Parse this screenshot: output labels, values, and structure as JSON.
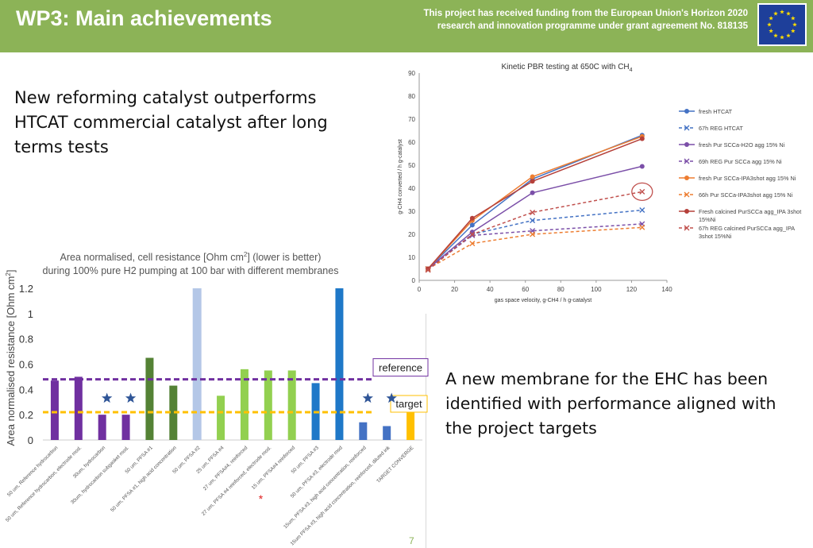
{
  "header": {
    "title": "WP3: Main achievements",
    "funding_line1": "This project has received funding from the European Union's Horizon 2020",
    "funding_line2": "research and innovation programme under grant agreement No. 818135",
    "accent_color": "#8cb357"
  },
  "claims": {
    "catalyst": "New reforming catalyst outperforms HTCAT commercial catalyst after long terms tests",
    "membrane": "A new membrane for the EHC has been identified with performance aligned with the project targets"
  },
  "page_number": "7",
  "chart_data": [
    {
      "type": "line",
      "title": "Kinetic PBR testing at 650C with CH",
      "title_subscript": "4",
      "xlabel": "gas space velocity, g-CH4 / h g-catalyst",
      "ylabel": "g-CH4 converted / h g-catalyst",
      "xlim": [
        0,
        140
      ],
      "ylim": [
        0,
        90
      ],
      "xticks": [
        "0",
        "20",
        "40",
        "60",
        "80",
        "100",
        "120",
        "140"
      ],
      "yticks": [
        "0",
        "10",
        "20",
        "30",
        "40",
        "50",
        "60",
        "70",
        "80",
        "90"
      ],
      "legend_position": "right",
      "x": [
        5,
        30,
        64,
        126
      ],
      "series": [
        {
          "name": "fresh HTCAT",
          "values": [
            5,
            24,
            44,
            63
          ],
          "color": "#4472c4",
          "dashed": false,
          "marker": "circle"
        },
        {
          "name": "67h REG HTCAT",
          "values": [
            5,
            20,
            26,
            30.5
          ],
          "color": "#4472c4",
          "dashed": true,
          "marker": "x"
        },
        {
          "name": "fresh Pur SCCa-H2O agg 15% Ni",
          "values": [
            5,
            21,
            38,
            49.5
          ],
          "color": "#7b4fa8",
          "dashed": false,
          "marker": "circle"
        },
        {
          "name": "69h REG Pur SCCa agg 15% Ni",
          "values": [
            5,
            19.5,
            21.5,
            24.5
          ],
          "color": "#7b4fa8",
          "dashed": true,
          "marker": "x"
        },
        {
          "name": "fresh Pur SCCa-IPA3shot agg 15% Ni",
          "values": [
            5,
            26,
            45,
            62.5
          ],
          "color": "#ed7d31",
          "dashed": false,
          "marker": "circle"
        },
        {
          "name": "66h Pur SCCa-IPA3shot agg 15% Ni",
          "values": [
            5,
            16,
            20,
            23
          ],
          "color": "#ed7d31",
          "dashed": true,
          "marker": "x"
        },
        {
          "name": "Fresh calcined PurSCCa agg_IPA 3shot 15%Ni",
          "values": [
            5,
            27,
            43,
            61.5
          ],
          "color": "#b5403a",
          "dashed": false,
          "marker": "circle"
        },
        {
          "name": "67h REG calcined PurSCCa agg_IPA 3shot 15%Ni",
          "values": [
            4.5,
            20,
            29.5,
            38.5
          ],
          "color": "#c0504d",
          "dashed": true,
          "marker": "x"
        }
      ],
      "highlight": {
        "x": 126,
        "y": 38.5
      }
    },
    {
      "type": "bar",
      "title_line1": "Area normalised, cell resistance [Ohm cm",
      "title_line1_sup": "2",
      "title_line1_end": "] (lower is better)",
      "title_line2": "during 100% pure H2 pumping at 100 bar with different membranes",
      "ylabel": "Area normalised resistance [Ohm cm",
      "ylabel_sup": "2",
      "ylabel_end": "]",
      "ylim": [
        0,
        1.2
      ],
      "yticks": [
        "0",
        "0.2",
        "0.4",
        "0.6",
        "0.8",
        "1",
        "1.2"
      ],
      "categories": [
        "50 um, Reference hydrocarbon",
        "50 um, Reference hydrocarbon, electrode mod.",
        "30um, hydrocarbon",
        "30um, hydrocarbon subgasket mod.",
        "50 um, PFSA #1",
        "50 um, PFSA #1, high acid concentration",
        "50 um, PFSA #2",
        "25 um, PFSA #4",
        "27 um, PFSA#4, reinforced",
        "27 um, PFSA #4 reinforced, electrode mod.",
        "15 um, PFSA#4 reinforced",
        "50 um, PFSA #3",
        "50 um, PFSA #3, electrode mod",
        "15um, PFSA #3, high acid concentration, reinforced",
        "15um PFSA #3, high acid concentration, reinforced, diluted ink",
        "TARGET CONVERGE"
      ],
      "values": [
        0.47,
        0.5,
        0.2,
        0.2,
        0.65,
        0.43,
        1.2,
        0.35,
        0.56,
        0.55,
        0.55,
        0.45,
        1.2,
        0.14,
        0.11,
        0.23
      ],
      "colors": [
        "#7030a0",
        "#7030a0",
        "#7030a0",
        "#7030a0",
        "#548235",
        "#548235",
        "#b4c7e7",
        "#92d050",
        "#92d050",
        "#92d050",
        "#92d050",
        "#1f78c8",
        "#1f78c8",
        "#4472c4",
        "#4472c4",
        "#ffc000"
      ],
      "stars": [
        2,
        3,
        13,
        14
      ],
      "star_color": "#2f5597",
      "red_asterisk_index": 10,
      "reference_line": {
        "label": "reference",
        "value": 0.48,
        "color": "#7030a0"
      },
      "target_line": {
        "label": "target",
        "value": 0.22,
        "color": "#ffc000"
      }
    }
  ]
}
